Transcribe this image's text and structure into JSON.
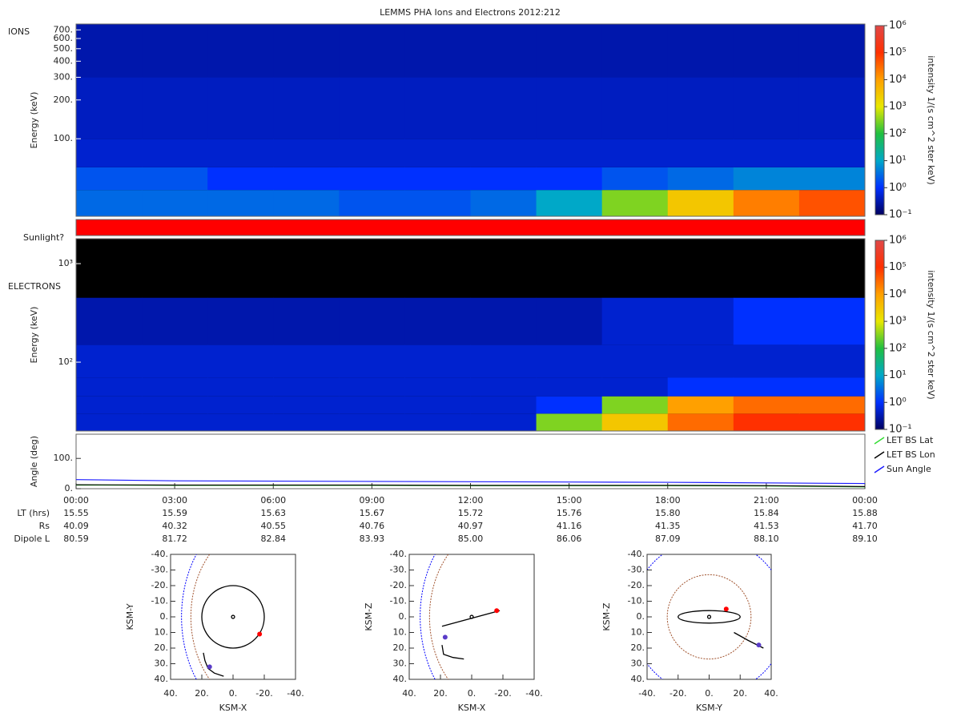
{
  "chart_data": [
    {
      "type": "heatmap",
      "title": "LEMMS PHA Ions and Electrons  2012:212",
      "label": "IONS",
      "ylabel": "Energy (keV)",
      "zlabel": "intensity 1/(s cm^2 ster keV)",
      "log_y": true,
      "ylim": [
        25,
        777
      ],
      "yticks": [
        {
          "value": 100,
          "label": "100."
        },
        {
          "value": 200,
          "label": "200."
        },
        {
          "value": 300,
          "label": "300."
        },
        {
          "value": 400,
          "label": "400."
        },
        {
          "value": 500,
          "label": "500."
        },
        {
          "value": 600,
          "label": "600."
        },
        {
          "value": 700,
          "label": "700."
        }
      ],
      "xlim": [
        0,
        24
      ],
      "x_edges": [
        0,
        2,
        4,
        6,
        8,
        10,
        12,
        14,
        16,
        18,
        20,
        22,
        24
      ],
      "y_edges": [
        25,
        40,
        60,
        100,
        300,
        777
      ],
      "values": [
        [
          3,
          3,
          3,
          3,
          2,
          2,
          3,
          10,
          300,
          3000,
          20000,
          50000
        ],
        [
          2,
          2,
          1,
          1,
          1,
          1,
          1,
          1,
          2,
          3,
          5,
          5
        ],
        [
          0.5,
          0.5,
          0.5,
          0.5,
          0.5,
          0.5,
          0.5,
          0.5,
          0.5,
          0.5,
          0.5,
          0.5
        ],
        [
          0.4,
          0.4,
          0.4,
          0.4,
          0.4,
          0.4,
          0.4,
          0.4,
          0.4,
          0.4,
          0.4,
          0.4
        ],
        [
          0.3,
          0.3,
          0.3,
          0.3,
          0.3,
          0.3,
          0.3,
          0.3,
          0.3,
          0.3,
          0.3,
          0.3
        ]
      ],
      "zlim": [
        0.1,
        1000000
      ],
      "zticks": [
        {
          "value": 0.1,
          "label": "10⁻¹"
        },
        {
          "value": 1,
          "label": "10⁰"
        },
        {
          "value": 10,
          "label": "10¹"
        },
        {
          "value": 100,
          "label": "10²"
        },
        {
          "value": 1000,
          "label": "10³"
        },
        {
          "value": 10000,
          "label": "10⁴"
        },
        {
          "value": 100000,
          "label": "10⁵"
        },
        {
          "value": 1000000,
          "label": "10⁶"
        }
      ],
      "colormap": [
        "#000060",
        "#0030ff",
        "#00a8c8",
        "#20c040",
        "#e8e800",
        "#ffa000",
        "#ff3000",
        "#e04848"
      ]
    },
    {
      "type": "band",
      "label": "Sunlight?",
      "color": "#ff0000"
    },
    {
      "type": "heatmap",
      "label": "ELECTRONS",
      "ylabel": "Energy (keV)",
      "zlabel": "intensity 1/(s cm^2 ster keV)",
      "log_y": true,
      "ylim": [
        20,
        1790
      ],
      "yticks": [
        {
          "value": 100,
          "label": "10²"
        },
        {
          "value": 1000,
          "label": "10³"
        }
      ],
      "xlim": [
        0,
        24
      ],
      "x_edges": [
        0,
        2,
        4,
        6,
        8,
        10,
        12,
        14,
        16,
        18,
        20,
        22,
        24
      ],
      "y_edges": [
        20,
        30,
        45,
        70,
        150,
        450,
        1790
      ],
      "values": [
        [
          0.5,
          0.5,
          0.5,
          0.5,
          0.5,
          0.5,
          0.5,
          300,
          3000,
          30000,
          100000,
          100000
        ],
        [
          0.5,
          0.5,
          0.5,
          0.5,
          0.5,
          0.5,
          0.5,
          1,
          300,
          10000,
          30000,
          30000
        ],
        [
          0.5,
          0.5,
          0.5,
          0.5,
          0.5,
          0.5,
          0.5,
          0.5,
          0.5,
          1,
          1,
          1
        ],
        [
          0.5,
          0.5,
          0.5,
          0.5,
          0.5,
          0.5,
          0.5,
          0.5,
          0.5,
          0.5,
          0.5,
          0.5
        ],
        [
          0.3,
          0.3,
          0.3,
          0.3,
          0.3,
          0.3,
          0.3,
          0.3,
          0.5,
          0.5,
          1,
          1
        ],
        [
          null,
          null,
          null,
          null,
          null,
          null,
          null,
          null,
          null,
          null,
          null,
          null
        ]
      ],
      "zlim": [
        0.1,
        1000000
      ],
      "zticks": [
        {
          "value": 0.1,
          "label": "10⁻¹"
        },
        {
          "value": 1,
          "label": "10⁰"
        },
        {
          "value": 10,
          "label": "10¹"
        },
        {
          "value": 100,
          "label": "10²"
        },
        {
          "value": 1000,
          "label": "10³"
        },
        {
          "value": 10000,
          "label": "10⁴"
        },
        {
          "value": 100000,
          "label": "10⁵"
        },
        {
          "value": 1000000,
          "label": "10⁶"
        }
      ],
      "colormap": [
        "#000060",
        "#0030ff",
        "#00a8c8",
        "#20c040",
        "#e8e800",
        "#ffa000",
        "#ff3000",
        "#e04848"
      ]
    },
    {
      "type": "line",
      "ylabel": "Angle (deg)",
      "xlim": [
        0,
        24
      ],
      "ylim": [
        0,
        180
      ],
      "yticks": [
        {
          "value": 0,
          "label": "0."
        },
        {
          "value": 100,
          "label": "100."
        }
      ],
      "xticks": [
        {
          "value": 0,
          "label": "00:00"
        },
        {
          "value": 3,
          "label": "03:00"
        },
        {
          "value": 6,
          "label": "06:00"
        },
        {
          "value": 9,
          "label": "09:00"
        },
        {
          "value": 12,
          "label": "12:00"
        },
        {
          "value": 15,
          "label": "15:00"
        },
        {
          "value": 18,
          "label": "18:00"
        },
        {
          "value": 21,
          "label": "21:00"
        },
        {
          "value": 24,
          "label": "00:00"
        }
      ],
      "x": [
        0,
        3,
        6,
        9,
        12,
        15,
        18,
        21,
        24
      ],
      "series": [
        {
          "name": "LET BS Lat",
          "color": "#33dd33",
          "values": [
            12,
            11,
            11,
            11,
            10,
            10,
            10,
            9,
            6
          ]
        },
        {
          "name": "LET BS Lon",
          "color": "#000000",
          "values": [
            13,
            12,
            12,
            12,
            11,
            11,
            11,
            10,
            7
          ]
        },
        {
          "name": "Sun Angle",
          "color": "#1a1aff",
          "values": [
            30,
            26,
            25,
            24,
            23,
            22,
            21,
            19,
            17
          ]
        }
      ],
      "legend": "right",
      "ephemeris": [
        {
          "label": "LT (hrs)",
          "values": [
            "15.55",
            "15.59",
            "15.63",
            "15.67",
            "15.72",
            "15.76",
            "15.80",
            "15.84",
            "15.88"
          ]
        },
        {
          "label": "Rs",
          "values": [
            "40.09",
            "40.32",
            "40.55",
            "40.76",
            "40.97",
            "41.16",
            "41.35",
            "41.53",
            "41.70"
          ]
        },
        {
          "label": "Dipole L",
          "values": [
            "80.59",
            "81.72",
            "82.84",
            "83.93",
            "85.00",
            "86.06",
            "87.09",
            "88.10",
            "89.10"
          ]
        }
      ]
    },
    {
      "type": "orbit",
      "xlabel": "KSM-X",
      "ylabel": "KSM-Y",
      "xlim": [
        40,
        -40
      ],
      "ylim": [
        -40,
        40
      ],
      "xticks": [
        {
          "value": 40,
          "label": "40."
        },
        {
          "value": 20,
          "label": "20."
        },
        {
          "value": 0,
          "label": "0."
        },
        {
          "value": -20,
          "label": "-20."
        },
        {
          "value": -40,
          "label": "-40."
        }
      ],
      "yticks": [
        {
          "value": -40,
          "label": "-40."
        },
        {
          "value": -30,
          "label": "-30."
        },
        {
          "value": -20,
          "label": "-20."
        },
        {
          "value": -10,
          "label": "-10."
        },
        {
          "value": 0,
          "label": "0."
        },
        {
          "value": 10,
          "label": "10."
        },
        {
          "value": 20,
          "label": "20."
        },
        {
          "value": 30,
          "label": "30."
        },
        {
          "value": 40,
          "label": "40."
        }
      ],
      "rings": [
        {
          "cx": 0,
          "cy": 0,
          "rx": 20,
          "ry": 20,
          "color": "#000000",
          "dashed": false
        },
        {
          "cx": 0,
          "cy": 0,
          "rx": 1,
          "ry": 1,
          "color": "#000000",
          "dashed": false
        },
        {
          "cx": -20,
          "cy": 0,
          "rx": 47,
          "ry": 60,
          "color": "#a0522d",
          "dashed": true
        },
        {
          "cx": -20,
          "cy": 0,
          "rx": 53,
          "ry": 70,
          "color": "#0000ff",
          "dashed": true
        }
      ],
      "trajectory": {
        "x": [
          19,
          18,
          16,
          12,
          6
        ],
        "y": [
          23,
          28,
          33,
          36,
          38
        ],
        "color": "#000000"
      },
      "markers": [
        {
          "x": -17,
          "y": 11,
          "color": "#ff0000"
        },
        {
          "x": 15,
          "y": 32,
          "color": "#5a3cc8"
        }
      ]
    },
    {
      "type": "orbit",
      "xlabel": "KSM-X",
      "ylabel": "KSM-Z",
      "xlim": [
        40,
        -40
      ],
      "ylim": [
        -40,
        40
      ],
      "xticks": [
        {
          "value": 40,
          "label": "40."
        },
        {
          "value": 20,
          "label": "20."
        },
        {
          "value": 0,
          "label": "0."
        },
        {
          "value": -20,
          "label": "-20."
        },
        {
          "value": -40,
          "label": "-40."
        }
      ],
      "yticks": [
        {
          "value": -40,
          "label": "-40."
        },
        {
          "value": -30,
          "label": "-30."
        },
        {
          "value": -20,
          "label": "-20."
        },
        {
          "value": -10,
          "label": "-10."
        },
        {
          "value": 0,
          "label": "0."
        },
        {
          "value": 10,
          "label": "10."
        },
        {
          "value": 20,
          "label": "20."
        },
        {
          "value": 30,
          "label": "30."
        },
        {
          "value": 40,
          "label": "40."
        }
      ],
      "rings": [
        {
          "cx": 0,
          "cy": 0,
          "rx": 1,
          "ry": 1,
          "color": "#000000",
          "dashed": false
        },
        {
          "cx": -20,
          "cy": 0,
          "rx": 47,
          "ry": 60,
          "color": "#a0522d",
          "dashed": true
        },
        {
          "cx": -20,
          "cy": 0,
          "rx": 53,
          "ry": 70,
          "color": "#0000ff",
          "dashed": true
        }
      ],
      "trajectory": {
        "x": [
          -18,
          19,
          null,
          19,
          18,
          12,
          5
        ],
        "y": [
          -4,
          6,
          null,
          18,
          24,
          26,
          27
        ],
        "color": "#000000"
      },
      "markers": [
        {
          "x": -16,
          "y": -4,
          "color": "#ff0000"
        },
        {
          "x": 17,
          "y": 13,
          "color": "#5a3cc8"
        }
      ]
    },
    {
      "type": "orbit",
      "xlabel": "KSM-Y",
      "ylabel": "KSM-Z",
      "xlim": [
        -40,
        40
      ],
      "ylim": [
        -40,
        40
      ],
      "xticks": [
        {
          "value": -40,
          "label": "-40."
        },
        {
          "value": -20,
          "label": "-20."
        },
        {
          "value": 0,
          "label": "0."
        },
        {
          "value": 20,
          "label": "20."
        },
        {
          "value": 40,
          "label": "40."
        }
      ],
      "yticks": [
        {
          "value": -40,
          "label": "-40."
        },
        {
          "value": -30,
          "label": "-30."
        },
        {
          "value": -20,
          "label": "-20."
        },
        {
          "value": -10,
          "label": "-10."
        },
        {
          "value": 0,
          "label": "0."
        },
        {
          "value": 10,
          "label": "10."
        },
        {
          "value": 20,
          "label": "20."
        },
        {
          "value": 30,
          "label": "30."
        },
        {
          "value": 40,
          "label": "40."
        }
      ],
      "rings": [
        {
          "cx": 0,
          "cy": 0,
          "rx": 20,
          "ry": 4,
          "color": "#000000",
          "dashed": false
        },
        {
          "cx": 0,
          "cy": 0,
          "rx": 1,
          "ry": 1,
          "color": "#000000",
          "dashed": false
        },
        {
          "cx": 0,
          "cy": 0,
          "rx": 27,
          "ry": 27,
          "color": "#a0522d",
          "dashed": true
        },
        {
          "cx": 0,
          "cy": 0,
          "rx": 50,
          "ry": 50,
          "color": "#0000ff",
          "dashed": true
        }
      ],
      "trajectory": {
        "x": [
          16,
          25,
          35
        ],
        "y": [
          10,
          15,
          20
        ],
        "color": "#000000"
      },
      "markers": [
        {
          "x": 11,
          "y": -5,
          "color": "#ff0000"
        },
        {
          "x": 32,
          "y": 18,
          "color": "#5a3cc8"
        }
      ]
    }
  ]
}
